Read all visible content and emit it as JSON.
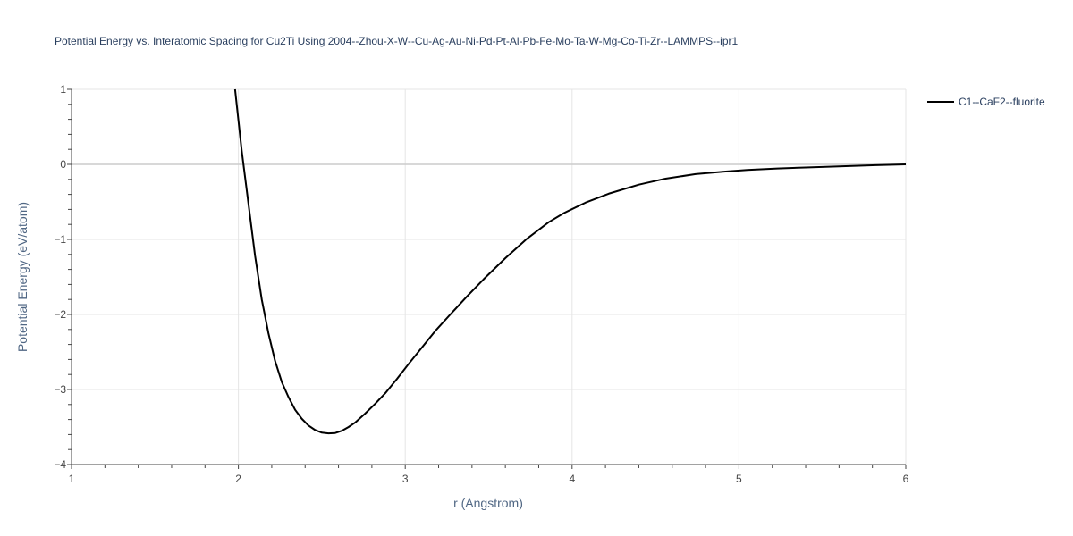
{
  "chart_data": {
    "type": "line",
    "title": "Potential Energy vs. Interatomic Spacing for Cu2Ti Using 2004--Zhou-X-W--Cu-Ag-Au-Ni-Pd-Pt-Al-Pb-Fe-Mo-Ta-W-Mg-Co-Ti-Zr--LAMMPS--ipr1",
    "xlabel": "r (Angstrom)",
    "ylabel": "Potential Energy (eV/atom)",
    "xlim": [
      1,
      6
    ],
    "ylim": [
      -4,
      1
    ],
    "xticks": [
      1,
      2,
      3,
      4,
      5,
      6
    ],
    "yticks": [
      1,
      0,
      -1,
      -2,
      -3,
      -4
    ],
    "xtick_labels": [
      "1",
      "2",
      "3",
      "4",
      "5",
      "6"
    ],
    "ytick_labels": [
      "1",
      "0",
      "−1",
      "−2",
      "−3",
      "−4"
    ],
    "grid": true,
    "legend_position": "top-right",
    "line_color": "#000000",
    "grid_color": "#e5e5e5",
    "zero_line_color": "#cccccc",
    "series": [
      {
        "name": "C1--CaF2--fluorite",
        "x": [
          1.98,
          2.02,
          2.06,
          2.1,
          2.14,
          2.18,
          2.22,
          2.26,
          2.3,
          2.34,
          2.38,
          2.42,
          2.46,
          2.5,
          2.54,
          2.58,
          2.62,
          2.66,
          2.7,
          2.76,
          2.82,
          2.88,
          2.95,
          3.02,
          3.1,
          3.18,
          3.27,
          3.37,
          3.47,
          3.6,
          3.73,
          3.86,
          3.95,
          4.08,
          4.22,
          4.4,
          4.56,
          4.74,
          4.92,
          5.05,
          5.23,
          5.42,
          5.62,
          5.82,
          6.0
        ],
        "y": [
          1.0,
          0.18,
          -0.52,
          -1.22,
          -1.8,
          -2.25,
          -2.62,
          -2.9,
          -3.1,
          -3.27,
          -3.39,
          -3.48,
          -3.54,
          -3.575,
          -3.585,
          -3.58,
          -3.55,
          -3.5,
          -3.44,
          -3.32,
          -3.19,
          -3.05,
          -2.86,
          -2.66,
          -2.44,
          -2.22,
          -2.0,
          -1.76,
          -1.53,
          -1.25,
          -0.99,
          -0.77,
          -0.65,
          -0.51,
          -0.39,
          -0.27,
          -0.19,
          -0.13,
          -0.095,
          -0.075,
          -0.055,
          -0.04,
          -0.025,
          -0.01,
          0.0
        ]
      }
    ]
  }
}
